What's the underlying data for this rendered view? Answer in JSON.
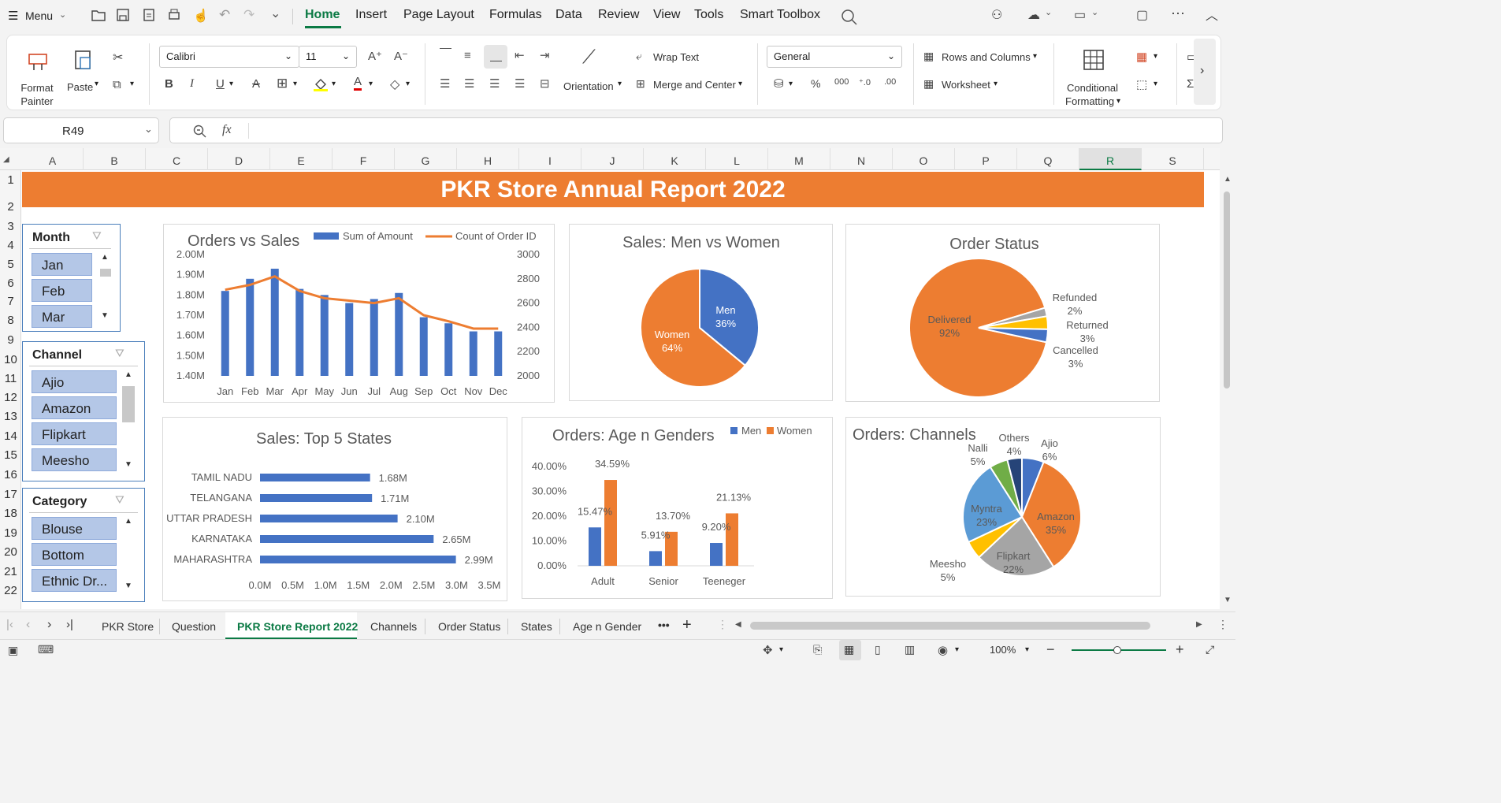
{
  "menubar": {
    "menu_label": "Menu",
    "tabs": [
      "Home",
      "Insert",
      "Page Layout",
      "Formulas",
      "Data",
      "Review",
      "View",
      "Tools",
      "Smart Toolbox"
    ],
    "active_tab": "Home"
  },
  "ribbon": {
    "format_painter": "Format\nPainter",
    "format_painter_l1": "Format",
    "format_painter_l2": "Painter",
    "paste": "Paste",
    "font_name": "Calibri",
    "font_size": "11",
    "wrap_text": "Wrap Text",
    "orientation": "Orientation",
    "merge_center": "Merge and Center",
    "number_format": "General",
    "rows_columns": "Rows and Columns",
    "worksheet": "Worksheet",
    "conditional_l1": "Conditional",
    "conditional_l2": "Formatting"
  },
  "formula_bar": {
    "cell_ref": "R49",
    "fx": "fx",
    "formula": ""
  },
  "columns": [
    "A",
    "B",
    "C",
    "D",
    "E",
    "F",
    "G",
    "H",
    "I",
    "J",
    "K",
    "L",
    "M",
    "N",
    "O",
    "P",
    "Q",
    "R",
    "S"
  ],
  "selected_column": "R",
  "rows": [
    "1",
    "2",
    "3",
    "4",
    "5",
    "6",
    "7",
    "8",
    "9",
    "10",
    "11",
    "12",
    "13",
    "14",
    "15",
    "16",
    "17",
    "18",
    "19",
    "20",
    "21",
    "22"
  ],
  "banner_title": "PKR Store Annual Report 2022",
  "slicers": {
    "month": {
      "title": "Month",
      "items": [
        "Jan",
        "Feb",
        "Mar"
      ]
    },
    "channel": {
      "title": "Channel",
      "items": [
        "Ajio",
        "Amazon",
        "Flipkart",
        "Meesho"
      ]
    },
    "category": {
      "title": "Category",
      "items": [
        "Blouse",
        "Bottom",
        "Ethnic Dr..."
      ]
    }
  },
  "colors": {
    "orange": "#ed7d31",
    "blue": "#4472c4",
    "gray": "#a5a5a5",
    "yellow": "#ffc000",
    "lightblue": "#5b9bd5",
    "green": "#70ad47",
    "navy": "#264478",
    "active_green": "#0b7a44"
  },
  "chart_data": [
    {
      "type": "bar",
      "title": "Orders vs Sales",
      "categories": [
        "Jan",
        "Feb",
        "Mar",
        "Apr",
        "May",
        "Jun",
        "Jul",
        "Aug",
        "Sep",
        "Oct",
        "Nov",
        "Dec"
      ],
      "series": [
        {
          "name": "Sum of Amount",
          "type": "bar",
          "axis": "left",
          "values": [
            1.82,
            1.88,
            1.93,
            1.83,
            1.8,
            1.76,
            1.78,
            1.81,
            1.69,
            1.66,
            1.62,
            1.62
          ]
        },
        {
          "name": "Count of Order ID",
          "type": "line",
          "axis": "right",
          "values": [
            2710,
            2750,
            2820,
            2700,
            2640,
            2620,
            2600,
            2640,
            2500,
            2450,
            2390,
            2390
          ]
        }
      ],
      "yticks_left": [
        "1.40M",
        "1.50M",
        "1.60M",
        "1.70M",
        "1.80M",
        "1.90M",
        "2.00M"
      ],
      "ylim_left": [
        1.4,
        2.0
      ],
      "yticks_right": [
        "2000",
        "2200",
        "2400",
        "2600",
        "2800",
        "3000"
      ],
      "ylim_right": [
        2000,
        3000
      ]
    },
    {
      "type": "pie",
      "title": "Sales: Men vs Women",
      "slices": [
        {
          "label": "Men",
          "pct": "36%",
          "value": 36
        },
        {
          "label": "Women",
          "pct": "64%",
          "value": 64
        }
      ]
    },
    {
      "type": "pie",
      "title": "Order Status",
      "slices": [
        {
          "label": "Delivered",
          "pct": "92%",
          "value": 92
        },
        {
          "label": "Refunded",
          "pct": "2%",
          "value": 2
        },
        {
          "label": "Returned",
          "pct": "3%",
          "value": 3
        },
        {
          "label": "Cancelled",
          "pct": "3%",
          "value": 3
        }
      ]
    },
    {
      "type": "bar",
      "orientation": "horizontal",
      "title": "Sales: Top 5 States",
      "categories": [
        "TAMIL NADU",
        "TELANGANA",
        "UTTAR PRADESH",
        "KARNATAKA",
        "MAHARASHTRA"
      ],
      "values": [
        1.68,
        1.71,
        2.1,
        2.65,
        2.99
      ],
      "labels": [
        "1.68M",
        "1.71M",
        "2.10M",
        "2.65M",
        "2.99M"
      ],
      "xticks": [
        "0.0M",
        "0.5M",
        "1.0M",
        "1.5M",
        "2.0M",
        "2.5M",
        "3.0M",
        "3.5M"
      ],
      "xlim": [
        0,
        3.5
      ]
    },
    {
      "type": "bar",
      "title": "Orders: Age n Genders",
      "categories": [
        "Adult",
        "Senior",
        "Teeneger"
      ],
      "series": [
        {
          "name": "Men",
          "values": [
            15.47,
            5.91,
            9.2
          ],
          "labels": [
            "15.47%",
            "5.91%",
            "9.20%"
          ]
        },
        {
          "name": "Women",
          "values": [
            34.59,
            13.7,
            21.13
          ],
          "labels": [
            "34.59%",
            "13.70%",
            "21.13%"
          ]
        }
      ],
      "yticks": [
        "0.00%",
        "10.00%",
        "20.00%",
        "30.00%",
        "40.00%"
      ],
      "ylim": [
        0,
        40
      ]
    },
    {
      "type": "pie",
      "title": "Orders: Channels",
      "slices": [
        {
          "label": "Ajio",
          "pct": "6%",
          "value": 6
        },
        {
          "label": "Amazon",
          "pct": "35%",
          "value": 35
        },
        {
          "label": "Flipkart",
          "pct": "22%",
          "value": 22
        },
        {
          "label": "Meesho",
          "pct": "5%",
          "value": 5
        },
        {
          "label": "Myntra",
          "pct": "23%",
          "value": 23
        },
        {
          "label": "Nalli",
          "pct": "5%",
          "value": 5
        },
        {
          "label": "Others",
          "pct": "4%",
          "value": 4
        }
      ]
    }
  ],
  "sheet_tabs": [
    "PKR Store",
    "Question",
    "PKR Store Report 2022",
    "Channels",
    "Order Status",
    "States",
    "Age n Gender"
  ],
  "active_sheet": "PKR Store Report 2022",
  "more_tabs": "•••",
  "add_tab": "+",
  "zoom": "100%"
}
